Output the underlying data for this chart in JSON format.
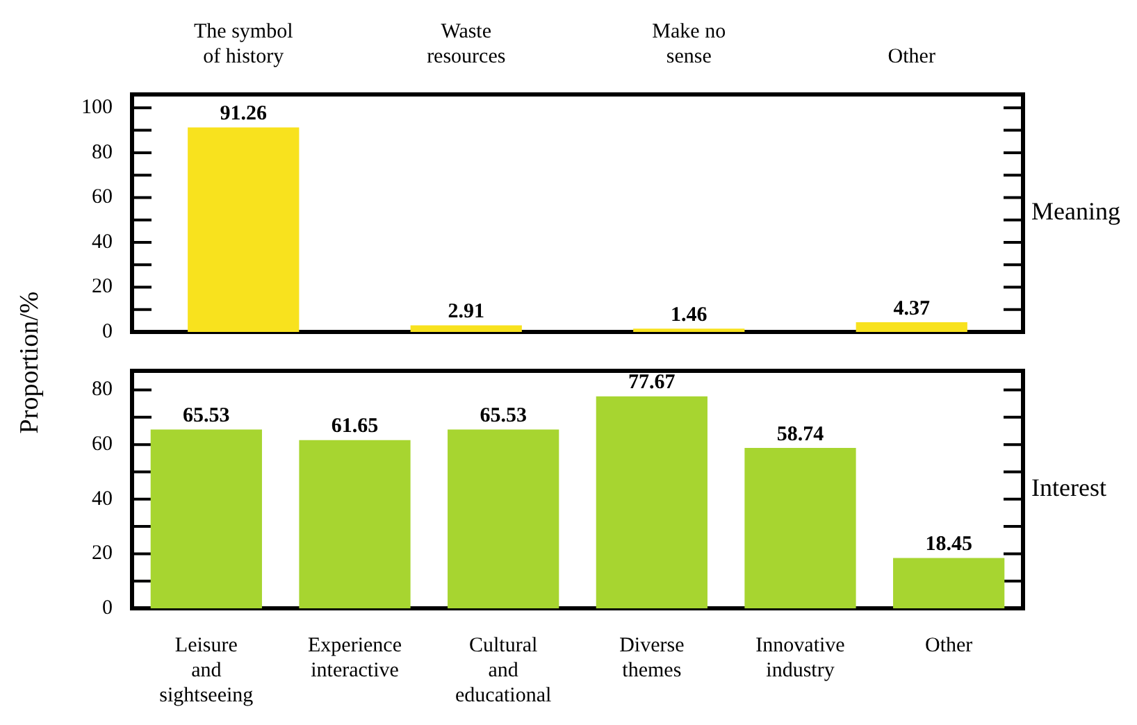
{
  "chart_data": [
    {
      "type": "bar",
      "categories": [
        "The symbol of history",
        "Waste resources",
        "Make no sense",
        "Other"
      ],
      "values": [
        91.26,
        2.91,
        1.46,
        4.37
      ],
      "color": "#f8e21e",
      "ylim": [
        0,
        106
      ],
      "yticks": [
        0,
        {
          "value": 10,
          "label": null
        },
        20,
        {
          "value": 30,
          "label": null
        },
        40,
        {
          "value": 50,
          "label": null
        },
        60,
        {
          "value": 70,
          "label": null
        },
        80,
        {
          "value": 90,
          "label": null
        },
        100
      ],
      "ylabel": "Proportion/%",
      "data_labels": true,
      "annotations": [
        "Meaning"
      ]
    },
    {
      "type": "bar",
      "categories": [
        "Leisure and sightseeing",
        "Experience interactive",
        "Cultural and educational",
        "Diverse themes",
        "Innovative industry",
        "Other"
      ],
      "values": [
        65.53,
        61.65,
        65.53,
        77.67,
        58.74,
        18.45
      ],
      "color": "#a7d530",
      "ylim": [
        0,
        87
      ],
      "yticks": [
        0,
        {
          "value": 10,
          "label": null
        },
        20,
        {
          "value": 30,
          "label": null
        },
        40,
        {
          "value": 50,
          "label": null
        },
        60,
        {
          "value": 70,
          "label": null
        },
        80
      ],
      "data_labels": true,
      "annotations": [
        "Interest"
      ]
    }
  ]
}
